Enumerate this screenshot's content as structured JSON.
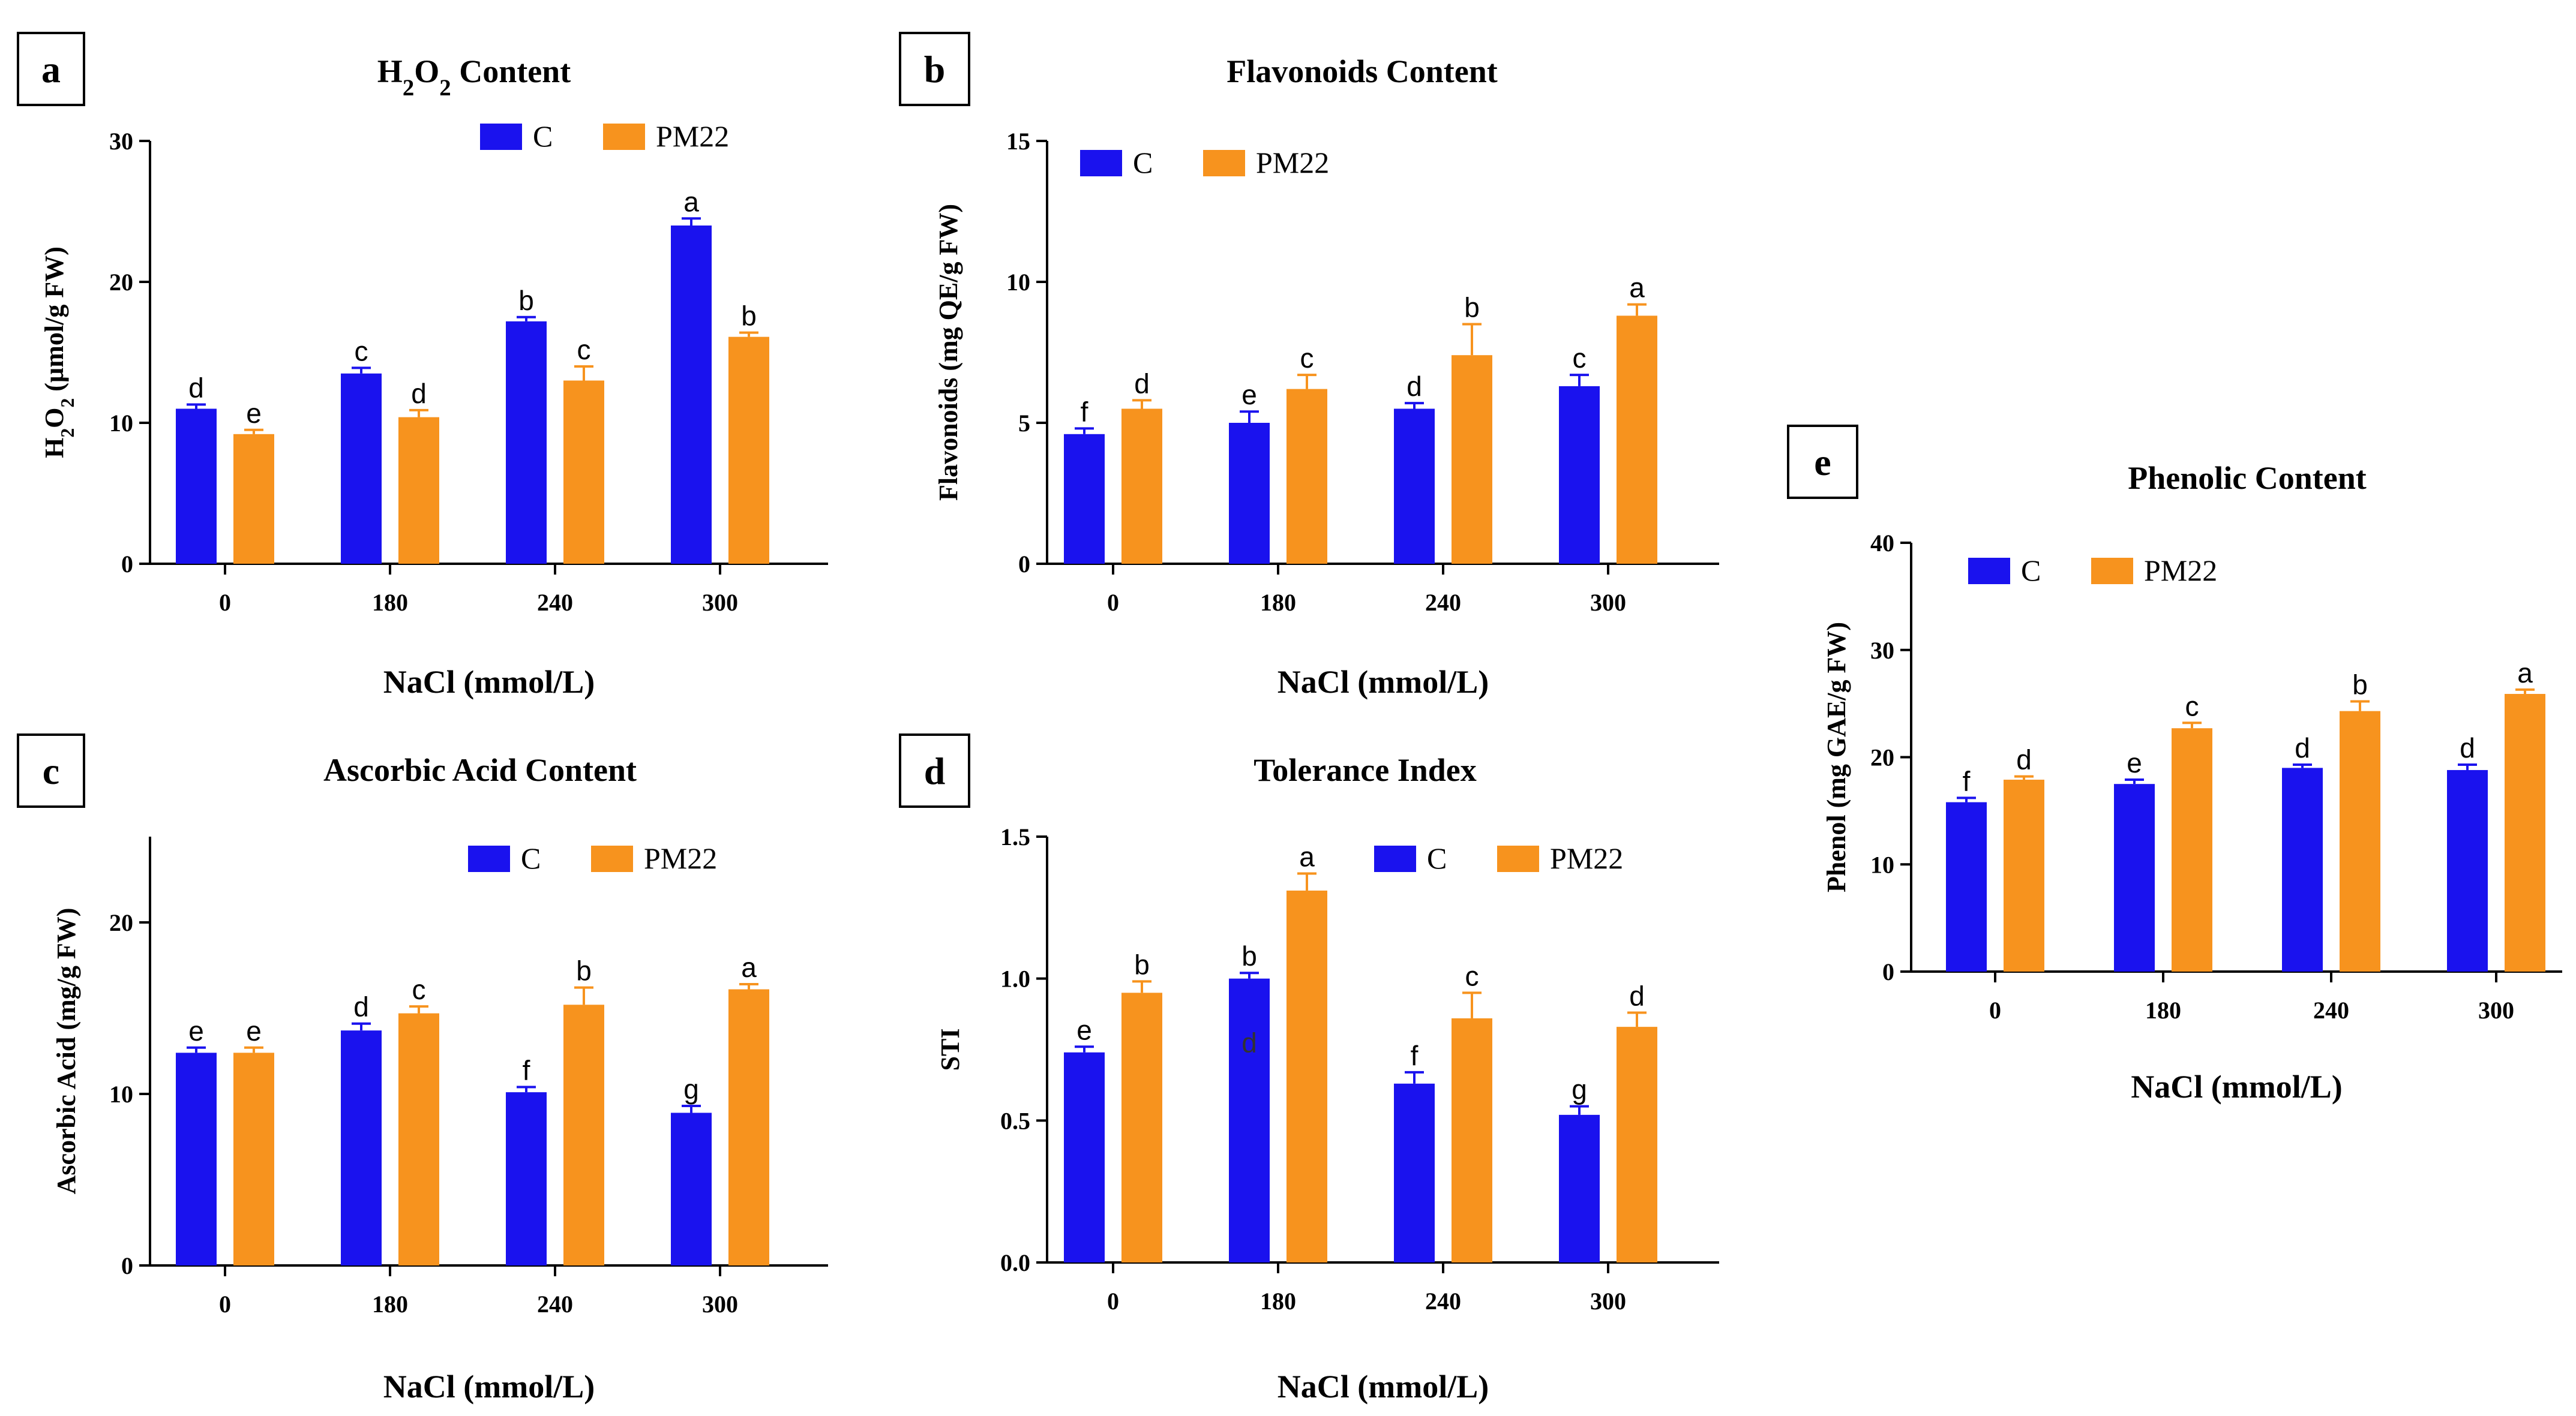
{
  "colors": {
    "C": "#1a12ee",
    "PM22": "#f7931e",
    "axis": "#000000",
    "text": "#000000"
  },
  "chart_data": [
    {
      "id": "a",
      "panel_label": "a",
      "type": "bar",
      "title": "H₂O₂ Content",
      "title_parts": [
        {
          "t": "H"
        },
        {
          "t": "2",
          "sub": true
        },
        {
          "t": "O"
        },
        {
          "t": "2",
          "sub": true
        },
        {
          "t": " Content"
        }
      ],
      "xlabel": "NaCl (mmol/L)",
      "ylabel": "H₂O₂ (µmol/g FW)",
      "ylabel_parts": [
        {
          "t": "H"
        },
        {
          "t": "2",
          "sub": true
        },
        {
          "t": "O"
        },
        {
          "t": "2",
          "sub": true
        },
        {
          "t": " (µmol/g FW)"
        }
      ],
      "categories": [
        "0",
        "180",
        "240",
        "300"
      ],
      "ylim": [
        0,
        30
      ],
      "yticks": [
        "0",
        "10",
        "20",
        "30"
      ],
      "yticks_values": [
        0,
        10,
        20,
        30
      ],
      "legend_position": "top-right",
      "series": [
        {
          "name": "C",
          "values": [
            11.0,
            13.5,
            17.2,
            24.0
          ],
          "errors": [
            0.3,
            0.4,
            0.3,
            0.5
          ],
          "letters": [
            "d",
            "c",
            "b",
            "a"
          ]
        },
        {
          "name": "PM22",
          "values": [
            9.2,
            10.4,
            13.0,
            16.1
          ],
          "errors": [
            0.3,
            0.5,
            1.0,
            0.3
          ],
          "letters": [
            "e",
            "d",
            "c",
            "b"
          ]
        }
      ]
    },
    {
      "id": "b",
      "panel_label": "b",
      "type": "bar",
      "title": "Flavonoids Content",
      "title_parts": [
        {
          "t": "Flavonoids Content"
        }
      ],
      "xlabel": "NaCl (mmol/L)",
      "ylabel": "Flavonoids (mg QE/g FW)",
      "ylabel_parts": [
        {
          "t": "Flavonoids (mg QE/g FW)"
        }
      ],
      "categories": [
        "0",
        "180",
        "240",
        "300"
      ],
      "ylim": [
        0,
        15
      ],
      "yticks": [
        "0",
        "5",
        "10",
        "15"
      ],
      "yticks_values": [
        0,
        5,
        10,
        15
      ],
      "legend_position": "top-left",
      "series": [
        {
          "name": "C",
          "values": [
            4.6,
            5.0,
            5.5,
            6.3
          ],
          "errors": [
            0.2,
            0.4,
            0.2,
            0.4
          ],
          "letters": [
            "f",
            "e",
            "d",
            "c"
          ]
        },
        {
          "name": "PM22",
          "values": [
            5.5,
            6.2,
            7.4,
            8.8
          ],
          "errors": [
            0.3,
            0.5,
            1.1,
            0.4
          ],
          "letters": [
            "d",
            "c",
            "b",
            "a"
          ]
        }
      ]
    },
    {
      "id": "c",
      "panel_label": "c",
      "type": "bar",
      "title": "Ascorbic Acid Content",
      "title_parts": [
        {
          "t": "Ascorbic Acid Content"
        }
      ],
      "xlabel": "NaCl (mmol/L)",
      "ylabel": "Ascorbic Acid (mg/g FW)",
      "ylabel_parts": [
        {
          "t": "Ascorbic Acid (mg/g FW)"
        }
      ],
      "categories": [
        "0",
        "180",
        "240",
        "300"
      ],
      "ylim": [
        0,
        25
      ],
      "yticks": [
        "0",
        "10",
        "20"
      ],
      "yticks_values": [
        0,
        10,
        20
      ],
      "legend_position": "top-right",
      "series": [
        {
          "name": "C",
          "values": [
            12.4,
            13.7,
            10.1,
            8.9
          ],
          "errors": [
            0.3,
            0.4,
            0.3,
            0.4
          ],
          "letters": [
            "e",
            "d",
            "f",
            "g"
          ]
        },
        {
          "name": "PM22",
          "values": [
            12.4,
            14.7,
            15.2,
            16.1
          ],
          "errors": [
            0.3,
            0.4,
            1.0,
            0.3
          ],
          "letters": [
            "e",
            "c",
            "b",
            "a"
          ]
        }
      ]
    },
    {
      "id": "d",
      "panel_label": "d",
      "type": "bar",
      "title": "Tolerance Index",
      "title_parts": [
        {
          "t": "Tolerance Index"
        }
      ],
      "xlabel": "NaCl (mmol/L)",
      "ylabel": "STI",
      "ylabel_parts": [
        {
          "t": "STI"
        }
      ],
      "categories": [
        "0",
        "180",
        "240",
        "300"
      ],
      "ylim": [
        0,
        1.5
      ],
      "yticks": [
        "0.0",
        "0.5",
        "1.0",
        "1.5"
      ],
      "yticks_values": [
        0,
        0.5,
        1.0,
        1.5
      ],
      "legend_position": "top-right",
      "annotation": "d",
      "series": [
        {
          "name": "C",
          "values": [
            0.74,
            1.0,
            0.63,
            0.52
          ],
          "errors": [
            0.02,
            0.02,
            0.04,
            0.03
          ],
          "letters": [
            "e",
            "b",
            "f",
            "g"
          ]
        },
        {
          "name": "PM22",
          "values": [
            0.95,
            1.31,
            0.86,
            0.83
          ],
          "errors": [
            0.04,
            0.06,
            0.09,
            0.05
          ],
          "letters": [
            "b",
            "a",
            "c",
            "d"
          ]
        }
      ]
    },
    {
      "id": "e",
      "panel_label": "e",
      "type": "bar",
      "title": "Phenolic Content",
      "title_parts": [
        {
          "t": "Phenolic Content"
        }
      ],
      "xlabel": "NaCl (mmol/L)",
      "ylabel": "Phenol (mg GAE/g FW)",
      "ylabel_parts": [
        {
          "t": "Phenol (mg GAE/g FW)"
        }
      ],
      "categories": [
        "0",
        "180",
        "240",
        "300"
      ],
      "ylim": [
        0,
        40
      ],
      "yticks": [
        "0",
        "10",
        "20",
        "30",
        "40"
      ],
      "yticks_values": [
        0,
        10,
        20,
        30,
        40
      ],
      "legend_position": "top-left",
      "series": [
        {
          "name": "C",
          "values": [
            15.8,
            17.5,
            19.0,
            18.8
          ],
          "errors": [
            0.4,
            0.4,
            0.3,
            0.5
          ],
          "letters": [
            "f",
            "e",
            "d",
            "d"
          ]
        },
        {
          "name": "PM22",
          "values": [
            17.9,
            22.7,
            24.3,
            25.9
          ],
          "errors": [
            0.3,
            0.5,
            0.9,
            0.4
          ],
          "letters": [
            "d",
            "c",
            "b",
            "a"
          ]
        }
      ]
    }
  ]
}
